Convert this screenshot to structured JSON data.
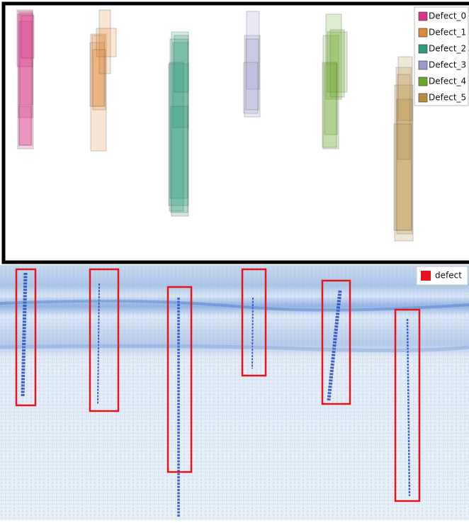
{
  "top_panel": {
    "legend": [
      {
        "label": "Defect_0",
        "color": "#d9368a"
      },
      {
        "label": "Defect_1",
        "color": "#e08838"
      },
      {
        "label": "Defect_2",
        "color": "#2e9c7c"
      },
      {
        "label": "Defect_3",
        "color": "#9a9acc"
      },
      {
        "label": "Defect_4",
        "color": "#6aa82a"
      },
      {
        "label": "Defect_5",
        "color": "#b68e40"
      }
    ]
  },
  "bottom_panel": {
    "legend": {
      "label": "defect",
      "color": "#e8141b"
    }
  }
}
